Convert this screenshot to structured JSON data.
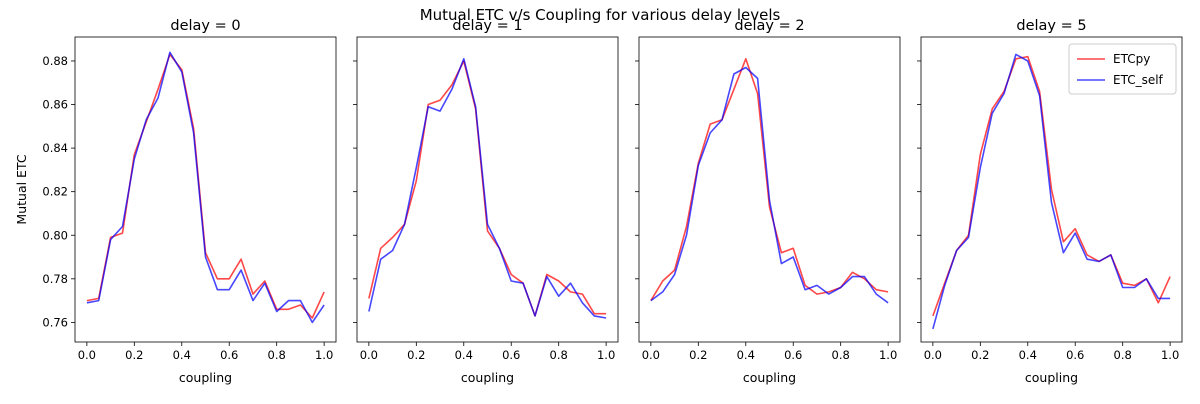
{
  "figure": {
    "title": "Mutual ETC v/s Coupling for various delay levels"
  },
  "chart_data": [
    {
      "type": "line",
      "title": "delay = 0",
      "xlabel": "coupling",
      "ylabel": "Mutual ETC",
      "xlim": [
        -0.05,
        1.05
      ],
      "ylim": [
        0.751,
        0.891
      ],
      "xticks": [
        0.0,
        0.2,
        0.4,
        0.6,
        0.8,
        1.0
      ],
      "yticks": [
        0.76,
        0.78,
        0.8,
        0.82,
        0.84,
        0.86,
        0.88
      ],
      "x": [
        0.0,
        0.05,
        0.1,
        0.15,
        0.2,
        0.25,
        0.3,
        0.35,
        0.4,
        0.45,
        0.5,
        0.55,
        0.6,
        0.65,
        0.7,
        0.75,
        0.8,
        0.85,
        0.9,
        0.95,
        1.0
      ],
      "series": [
        {
          "name": "ETCpy",
          "color": "#ff0000",
          "values": [
            0.77,
            0.771,
            0.799,
            0.801,
            0.837,
            0.852,
            0.867,
            0.883,
            0.876,
            0.849,
            0.792,
            0.78,
            0.78,
            0.789,
            0.773,
            0.779,
            0.766,
            0.766,
            0.768,
            0.762,
            0.774
          ]
        },
        {
          "name": "ETC_self",
          "color": "#0000ff",
          "values": [
            0.769,
            0.77,
            0.798,
            0.804,
            0.835,
            0.853,
            0.863,
            0.884,
            0.875,
            0.847,
            0.79,
            0.775,
            0.775,
            0.784,
            0.77,
            0.778,
            0.765,
            0.77,
            0.77,
            0.76,
            0.768
          ]
        }
      ],
      "legend": false
    },
    {
      "type": "line",
      "title": "delay = 1",
      "xlabel": "coupling",
      "xlim": [
        -0.05,
        1.05
      ],
      "ylim": [
        0.751,
        0.891
      ],
      "xticks": [
        0.0,
        0.2,
        0.4,
        0.6,
        0.8,
        1.0
      ],
      "x": [
        0.0,
        0.05,
        0.1,
        0.15,
        0.2,
        0.25,
        0.3,
        0.35,
        0.4,
        0.45,
        0.5,
        0.55,
        0.6,
        0.65,
        0.7,
        0.75,
        0.8,
        0.85,
        0.9,
        0.95,
        1.0
      ],
      "series": [
        {
          "name": "ETCpy",
          "color": "#ff0000",
          "values": [
            0.771,
            0.794,
            0.799,
            0.805,
            0.825,
            0.86,
            0.862,
            0.869,
            0.88,
            0.858,
            0.802,
            0.794,
            0.782,
            0.778,
            0.763,
            0.782,
            0.779,
            0.774,
            0.773,
            0.764,
            0.764
          ]
        },
        {
          "name": "ETC_self",
          "color": "#0000ff",
          "values": [
            0.765,
            0.789,
            0.793,
            0.805,
            0.831,
            0.859,
            0.857,
            0.867,
            0.881,
            0.859,
            0.805,
            0.794,
            0.779,
            0.778,
            0.763,
            0.781,
            0.772,
            0.778,
            0.769,
            0.763,
            0.762
          ]
        }
      ],
      "legend": false
    },
    {
      "type": "line",
      "title": "delay = 2",
      "xlabel": "coupling",
      "xlim": [
        -0.05,
        1.05
      ],
      "ylim": [
        0.751,
        0.891
      ],
      "xticks": [
        0.0,
        0.2,
        0.4,
        0.6,
        0.8,
        1.0
      ],
      "x": [
        0.0,
        0.05,
        0.1,
        0.15,
        0.2,
        0.25,
        0.3,
        0.35,
        0.4,
        0.45,
        0.5,
        0.55,
        0.6,
        0.65,
        0.7,
        0.75,
        0.8,
        0.85,
        0.9,
        0.95,
        1.0
      ],
      "series": [
        {
          "name": "ETCpy",
          "color": "#ff0000",
          "values": [
            0.77,
            0.779,
            0.784,
            0.804,
            0.833,
            0.851,
            0.853,
            0.867,
            0.881,
            0.865,
            0.813,
            0.792,
            0.794,
            0.777,
            0.773,
            0.774,
            0.776,
            0.783,
            0.78,
            0.775,
            0.774
          ]
        },
        {
          "name": "ETC_self",
          "color": "#0000ff",
          "values": [
            0.77,
            0.774,
            0.782,
            0.8,
            0.832,
            0.847,
            0.853,
            0.874,
            0.877,
            0.872,
            0.816,
            0.787,
            0.79,
            0.775,
            0.777,
            0.773,
            0.776,
            0.781,
            0.781,
            0.773,
            0.769
          ]
        }
      ],
      "legend": false
    },
    {
      "type": "line",
      "title": "delay = 5",
      "xlabel": "coupling",
      "xlim": [
        -0.05,
        1.05
      ],
      "ylim": [
        0.751,
        0.891
      ],
      "xticks": [
        0.0,
        0.2,
        0.4,
        0.6,
        0.8,
        1.0
      ],
      "x": [
        0.0,
        0.05,
        0.1,
        0.15,
        0.2,
        0.25,
        0.3,
        0.35,
        0.4,
        0.45,
        0.5,
        0.55,
        0.6,
        0.65,
        0.7,
        0.75,
        0.8,
        0.85,
        0.9,
        0.95,
        1.0
      ],
      "series": [
        {
          "name": "ETCpy",
          "color": "#ff0000",
          "values": [
            0.763,
            0.778,
            0.793,
            0.8,
            0.837,
            0.858,
            0.866,
            0.881,
            0.882,
            0.866,
            0.821,
            0.797,
            0.803,
            0.791,
            0.788,
            0.791,
            0.778,
            0.777,
            0.78,
            0.769,
            0.781
          ]
        },
        {
          "name": "ETC_self",
          "color": "#0000ff",
          "values": [
            0.757,
            0.777,
            0.793,
            0.799,
            0.831,
            0.856,
            0.865,
            0.883,
            0.88,
            0.864,
            0.815,
            0.792,
            0.801,
            0.789,
            0.788,
            0.791,
            0.776,
            0.776,
            0.78,
            0.771,
            0.771
          ]
        }
      ],
      "legend": true,
      "legend_loc": "upper right"
    }
  ]
}
